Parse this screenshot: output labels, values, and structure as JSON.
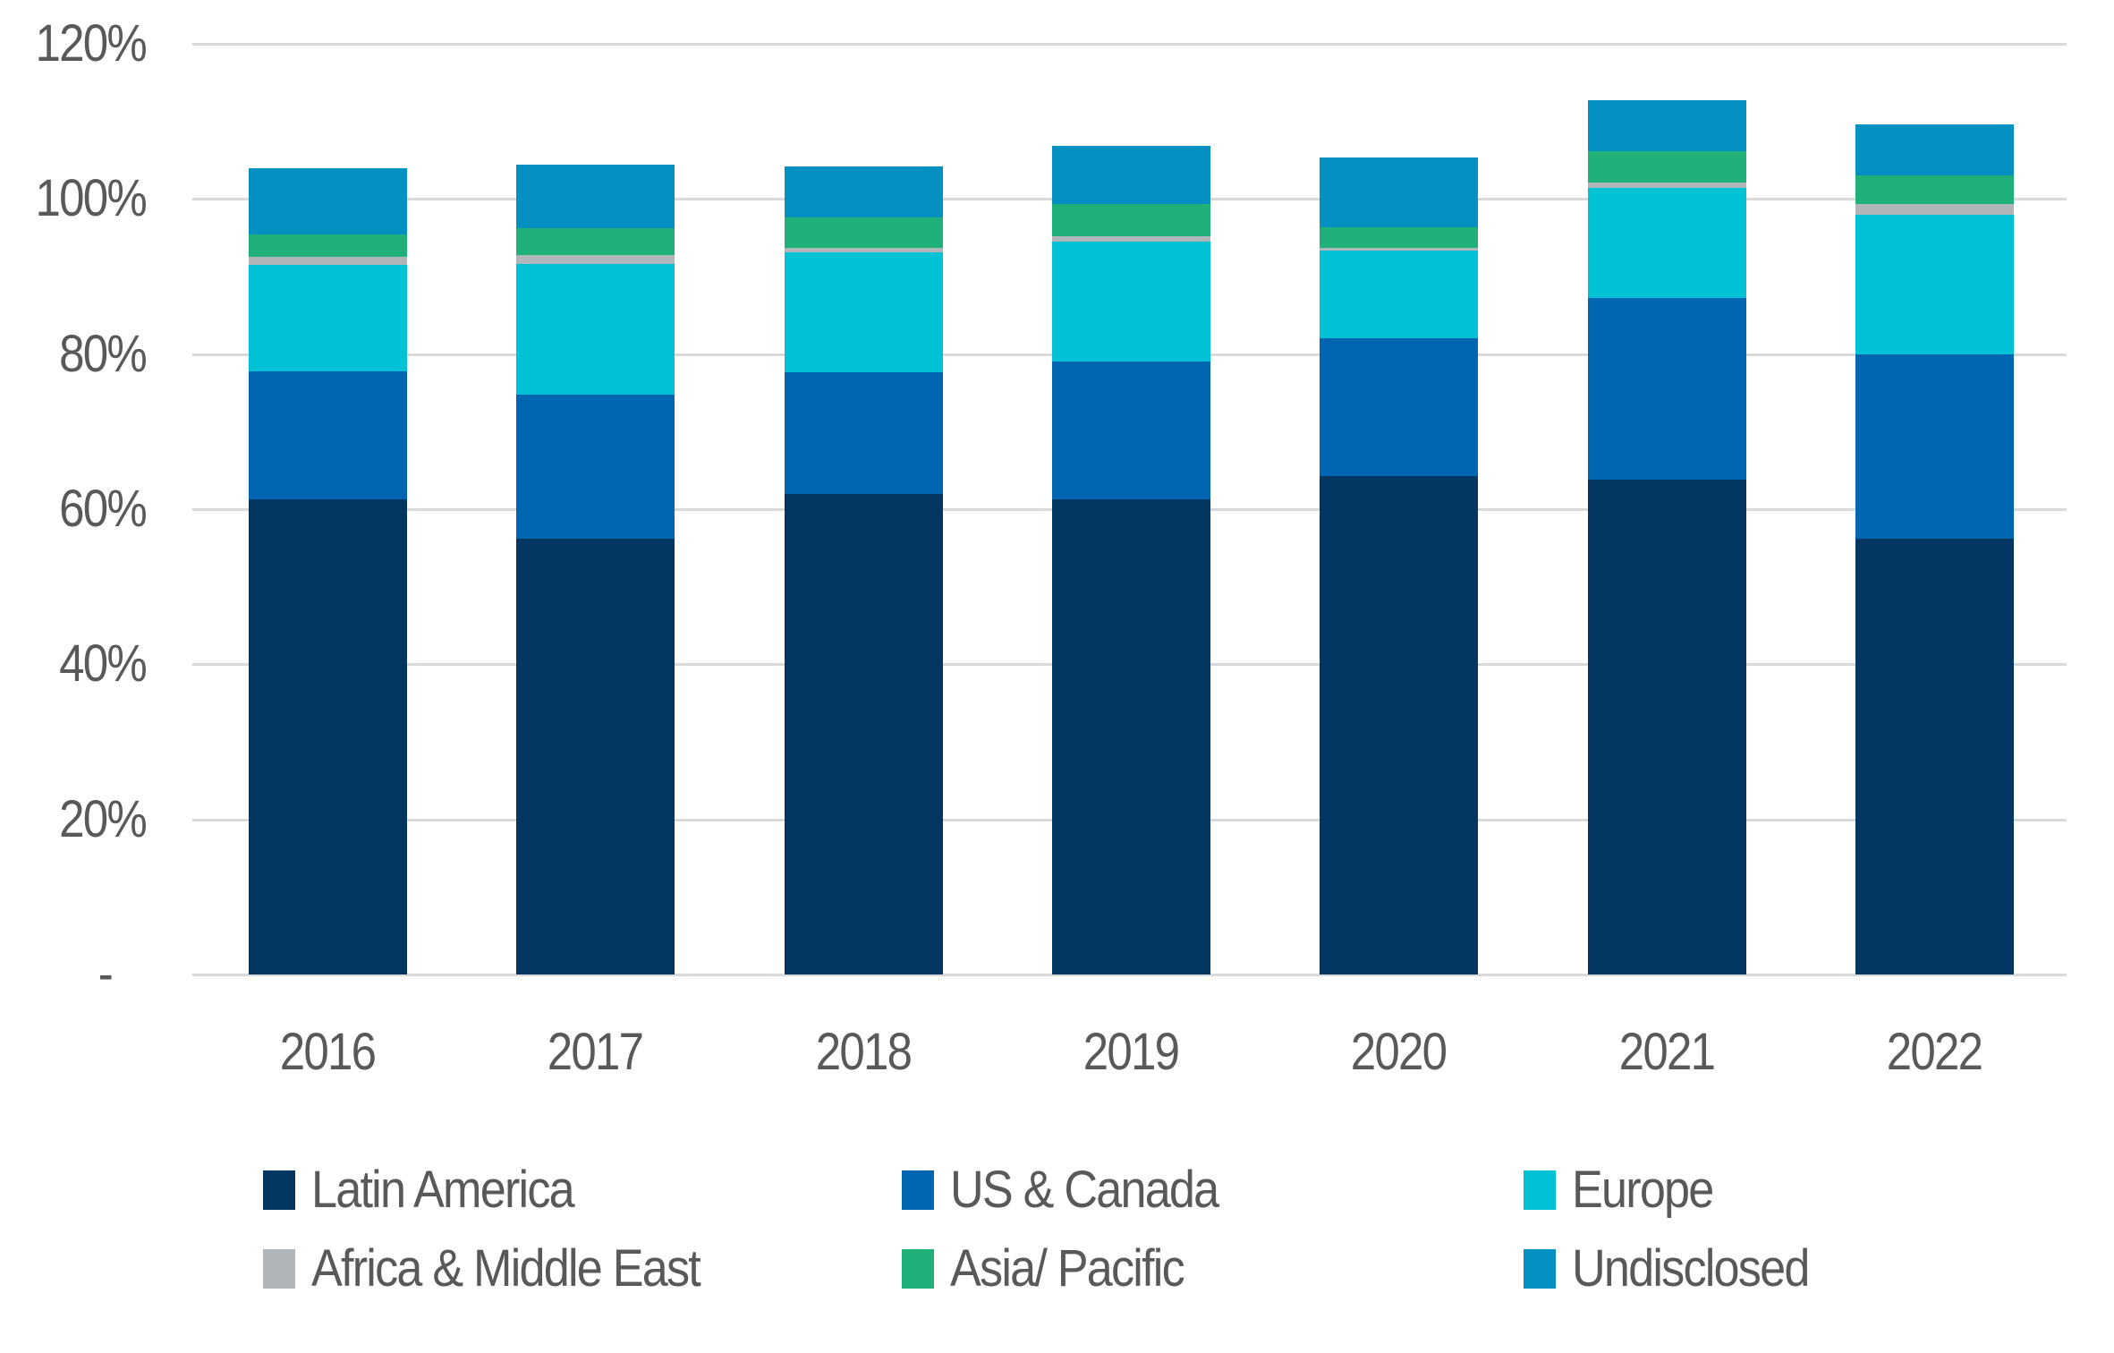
{
  "chart_data": {
    "type": "bar",
    "stacked": true,
    "title": "",
    "xlabel": "",
    "ylabel": "",
    "categories": [
      "2016",
      "2017",
      "2018",
      "2019",
      "2020",
      "2021",
      "2022"
    ],
    "series": [
      {
        "name": "Latin America",
        "color": "#033761",
        "values": [
          61.3,
          56.2,
          62.0,
          61.3,
          64.3,
          63.8,
          56.2
        ]
      },
      {
        "name": "US & Canada",
        "color": "#0066B2",
        "values": [
          16.5,
          18.6,
          15.6,
          17.7,
          17.7,
          23.4,
          23.8
        ]
      },
      {
        "name": "Europe",
        "color": "#00C2D4",
        "values": [
          13.7,
          16.8,
          15.5,
          15.5,
          11.3,
          14.2,
          18.0
        ]
      },
      {
        "name": "Africa & Middle East",
        "color": "#AFB5B9",
        "values": [
          1.0,
          1.2,
          0.6,
          0.7,
          0.4,
          0.7,
          1.4
        ]
      },
      {
        "name": "Asia/ Pacific",
        "color": "#20B17B",
        "values": [
          2.9,
          3.4,
          3.9,
          4.1,
          2.7,
          4.1,
          3.6
        ]
      },
      {
        "name": "Undisclosed",
        "color": "#0590C2",
        "values": [
          8.6,
          8.2,
          6.6,
          7.5,
          8.9,
          6.5,
          6.6
        ]
      }
    ],
    "stack_totals": [
      104.0,
      104.4,
      104.2,
      106.8,
      105.3,
      112.7,
      109.6
    ],
    "y_axis": {
      "max": 120,
      "ticks": [
        {
          "label": "-",
          "value": 0
        },
        {
          "label": "20%",
          "value": 20
        },
        {
          "label": "40%",
          "value": 40
        },
        {
          "label": "60%",
          "value": 60
        },
        {
          "label": "80%",
          "value": 80
        },
        {
          "label": "100%",
          "value": 100
        },
        {
          "label": "120%",
          "value": 120
        }
      ]
    },
    "grid": true,
    "legend_position": "bottom",
    "legend_columns": 3
  },
  "colors": {
    "text": "#595959",
    "gridline": "#D9D9D9",
    "background": "#FFFFFF"
  }
}
